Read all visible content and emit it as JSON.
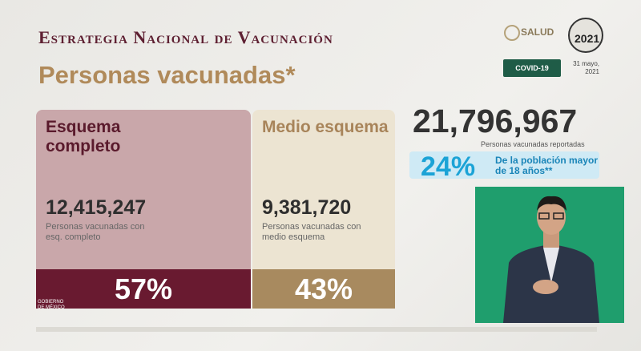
{
  "header": {
    "title": "Estrategia Nacional de Vacunación",
    "subtitle": "Personas vacunadas*"
  },
  "logos": {
    "ministry": "SALUD",
    "year": "2021",
    "badge": "COVID-19",
    "date": "31 mayo, 2021",
    "government": "GOBIERNO DE MÉXICO"
  },
  "cards": [
    {
      "title": "Esquema completo",
      "count": "12,415,247",
      "caption": "Personas vacunadas con esq. completo",
      "percent": "57%"
    },
    {
      "title": "Medio esquema",
      "count": "9,381,720",
      "caption": "Personas vacunadas con medio esquema",
      "percent": "43%"
    }
  ],
  "total": {
    "count": "21,796,967",
    "caption": "Personas vacunadas reportadas",
    "percent": "24%",
    "percent_caption": "De la población mayor de 18 años**"
  }
}
